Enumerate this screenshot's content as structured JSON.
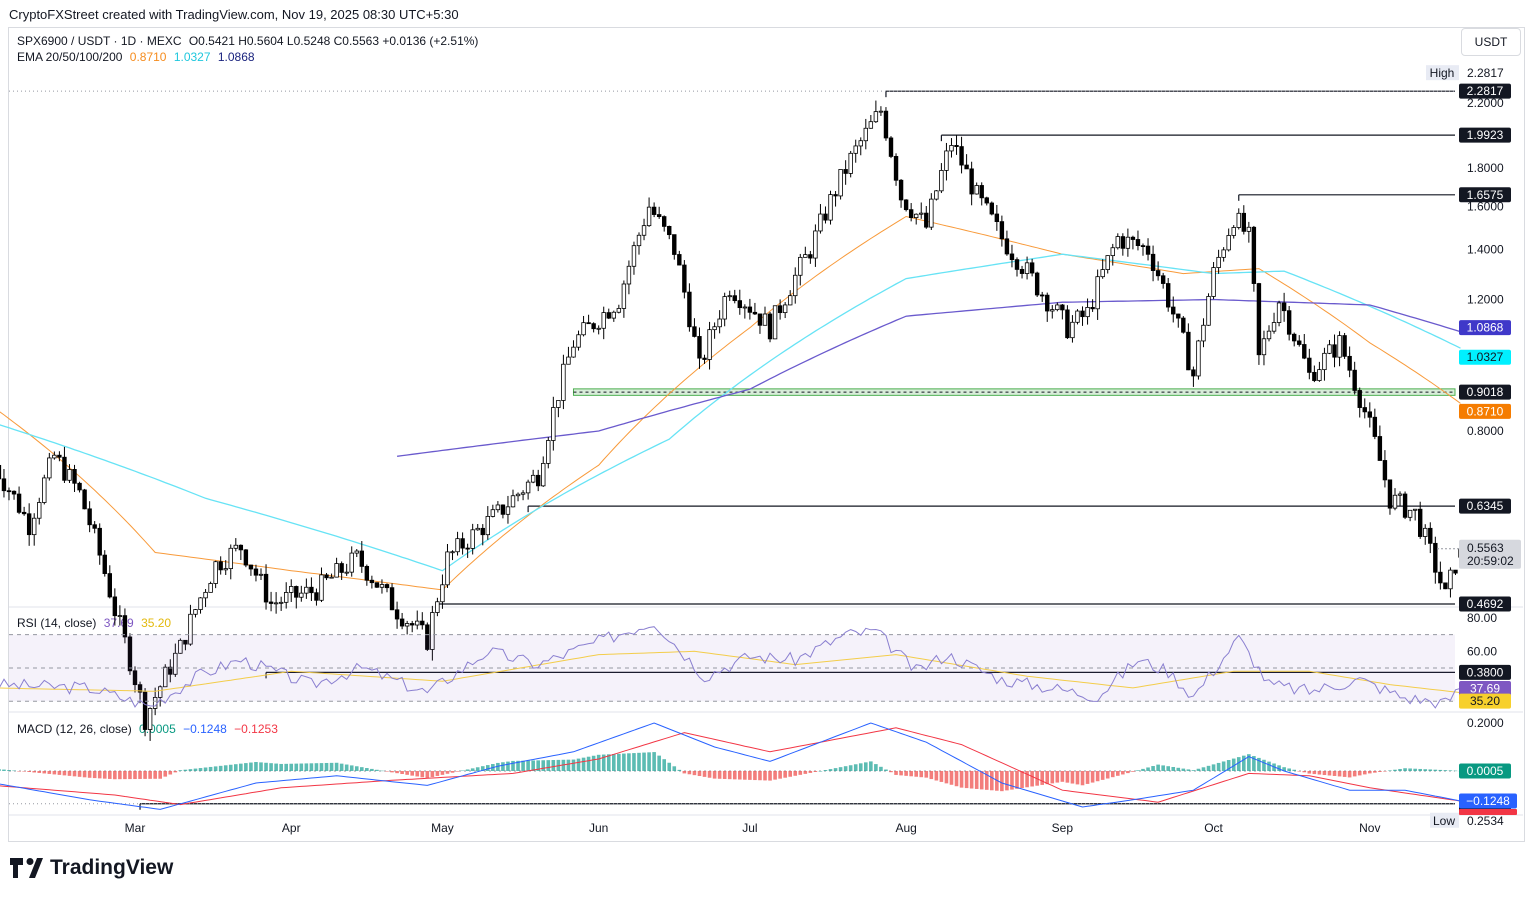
{
  "header": {
    "attribution": "CryptoFXStreet created with TradingView.com, Nov 19, 2025 08:30 UTC+5:30"
  },
  "legend": {
    "symbol": "SPX6900 / USDT · 1D · MEXC",
    "ohlc": "O0.5421 H0.5604 L0.5248 C0.5563 +0.0136 (+2.51%)",
    "ema_label": "EMA 20/50/100/200",
    "ema50": "0.8710",
    "ema100": "1.0327",
    "ema200": "1.0868",
    "rsi_label": "RSI (14, close)",
    "rsi_value": "37.69",
    "rsi_ma": "35.20",
    "macd_label": "MACD (12, 26, close)",
    "macd_hist": "0.0005",
    "macd_line": "−0.1248",
    "macd_signal": "−0.1253"
  },
  "currency": "USDT",
  "brand": "TradingView",
  "colors": {
    "up": "#ffffff",
    "down": "#000000",
    "ema50": "#f89a3a",
    "ema100": "#67e3f5",
    "ema200": "#6a5acd",
    "rsi": "#8a7fd0",
    "rsi_ma": "#f3cd4a",
    "macd": "#2962ff",
    "signal": "#f23645",
    "hist_up": "#26a69a",
    "hist_down": "#ef5350",
    "zone": "#4caf50"
  },
  "chart_data": [
    {
      "type": "candlestick",
      "title": "SPX6900 / USDT · 1D · MEXC",
      "x_ticks": [
        "Mar",
        "Apr",
        "May",
        "Jun",
        "Jul",
        "Aug",
        "Sep",
        "Oct",
        "Nov"
      ],
      "y_ticks": [
        "2.2000",
        "1.8000",
        "1.6000",
        "1.4000",
        "1.2000",
        "1.0000",
        "0.8000"
      ],
      "y_scale": "log",
      "ylim": [
        0.22,
        2.45
      ],
      "last": {
        "open": 0.5421,
        "high": 0.5604,
        "low": 0.5248,
        "close": 0.5563,
        "change": 0.0136,
        "change_pct": 2.51,
        "countdown": "20:59:02"
      },
      "high": {
        "label": "High",
        "value": "2.2817"
      },
      "low": {
        "label": "Low",
        "value": "0.2534"
      },
      "levels": [
        {
          "value": 2.2817,
          "label": "2.2817",
          "from": "2025-07-28"
        },
        {
          "value": 1.9923,
          "label": "1.9923",
          "from": "2025-08-08"
        },
        {
          "value": 1.6575,
          "label": "1.6575",
          "from": "2025-10-06"
        },
        {
          "value": 0.9018,
          "label": "0.9018",
          "from": "2025-05-27",
          "zone": [
            0.893,
            0.911
          ]
        },
        {
          "value": 0.6345,
          "label": "0.6345",
          "from": "2025-05-18"
        },
        {
          "value": 0.4692,
          "label": "0.4692",
          "from": "2025-04-30"
        },
        {
          "value": 0.38,
          "label": "0.3800",
          "from": "2025-03-27"
        },
        {
          "value": 0.2534,
          "label": "0.2534",
          "from": "2025-03-02"
        }
      ],
      "markers": [
        {
          "label": "1.0868",
          "value": 1.0868,
          "series": "EMA 200"
        },
        {
          "label": "1.0327",
          "value": 1.0327,
          "series": "EMA 100"
        },
        {
          "label": "0.8710",
          "value": 0.871,
          "series": "EMA 50"
        },
        {
          "label": "0.5563",
          "value": 0.5563,
          "series": "last"
        }
      ],
      "anchors": [
        [
          "2025-02-01",
          0.72
        ],
        [
          "2025-02-08",
          0.6
        ],
        [
          "2025-02-13",
          0.74
        ],
        [
          "2025-02-18",
          0.66
        ],
        [
          "2025-02-25",
          0.46
        ],
        [
          "2025-03-03",
          0.33
        ],
        [
          "2025-03-10",
          0.41
        ],
        [
          "2025-03-17",
          0.53
        ],
        [
          "2025-03-22",
          0.56
        ],
        [
          "2025-03-28",
          0.47
        ],
        [
          "2025-04-06",
          0.49
        ],
        [
          "2025-04-14",
          0.54
        ],
        [
          "2025-04-22",
          0.46
        ],
        [
          "2025-04-28",
          0.42
        ],
        [
          "2025-05-02",
          0.54
        ],
        [
          "2025-05-12",
          0.62
        ],
        [
          "2025-05-20",
          0.7
        ],
        [
          "2025-05-27",
          1.05
        ],
        [
          "2025-06-05",
          1.2
        ],
        [
          "2025-06-11",
          1.6
        ],
        [
          "2025-06-16",
          1.4
        ],
        [
          "2025-06-21",
          0.97
        ],
        [
          "2025-06-27",
          1.25
        ],
        [
          "2025-07-05",
          1.1
        ],
        [
          "2025-07-13",
          1.4
        ],
        [
          "2025-07-21",
          1.85
        ],
        [
          "2025-07-27",
          2.15
        ],
        [
          "2025-07-31",
          1.65
        ],
        [
          "2025-08-05",
          1.5
        ],
        [
          "2025-08-10",
          1.95
        ],
        [
          "2025-08-15",
          1.65
        ],
        [
          "2025-08-20",
          1.45
        ],
        [
          "2025-08-27",
          1.25
        ],
        [
          "2025-09-02",
          1.1
        ],
        [
          "2025-09-06",
          1.15
        ],
        [
          "2025-09-12",
          1.45
        ],
        [
          "2025-09-18",
          1.4
        ],
        [
          "2025-09-22",
          1.2
        ],
        [
          "2025-09-27",
          0.95
        ],
        [
          "2025-10-01",
          1.3
        ],
        [
          "2025-10-05",
          1.55
        ],
        [
          "2025-10-08",
          1.45
        ],
        [
          "2025-10-10",
          1.0
        ],
        [
          "2025-10-14",
          1.2
        ],
        [
          "2025-10-20",
          0.95
        ],
        [
          "2025-10-26",
          1.05
        ],
        [
          "2025-10-31",
          0.85
        ],
        [
          "2025-11-05",
          0.65
        ],
        [
          "2025-11-10",
          0.62
        ],
        [
          "2025-11-16",
          0.48
        ],
        [
          "2025-11-19",
          0.5563
        ]
      ],
      "ema50": [
        [
          "2025-02-01",
          0.86
        ],
        [
          "2025-03-05",
          0.55
        ],
        [
          "2025-04-01",
          0.52
        ],
        [
          "2025-05-01",
          0.49
        ],
        [
          "2025-06-01",
          0.72
        ],
        [
          "2025-07-01",
          1.1
        ],
        [
          "2025-08-01",
          1.55
        ],
        [
          "2025-09-01",
          1.38
        ],
        [
          "2025-09-25",
          1.3
        ],
        [
          "2025-10-10",
          1.32
        ],
        [
          "2025-11-01",
          1.05
        ],
        [
          "2025-11-19",
          0.871
        ]
      ],
      "ema100": [
        [
          "2025-02-01",
          0.82
        ],
        [
          "2025-03-15",
          0.65
        ],
        [
          "2025-05-01",
          0.52
        ],
        [
          "2025-06-15",
          0.78
        ],
        [
          "2025-08-01",
          1.28
        ],
        [
          "2025-09-01",
          1.38
        ],
        [
          "2025-10-01",
          1.3
        ],
        [
          "2025-10-15",
          1.31
        ],
        [
          "2025-11-19",
          1.0327
        ]
      ],
      "ema200": [
        [
          "2025-04-22",
          0.74
        ],
        [
          "2025-06-01",
          0.8
        ],
        [
          "2025-07-01",
          0.91
        ],
        [
          "2025-08-01",
          1.14
        ],
        [
          "2025-09-01",
          1.19
        ],
        [
          "2025-10-01",
          1.2
        ],
        [
          "2025-11-01",
          1.18
        ],
        [
          "2025-11-19",
          1.0868
        ]
      ]
    },
    {
      "type": "line",
      "title": "RSI (14, close)",
      "y_ticks": [
        "80.00",
        "60.00"
      ],
      "ylim": [
        17,
        83
      ],
      "bands": [
        30,
        50,
        70
      ],
      "series": [
        {
          "name": "RSI",
          "last": 37.69,
          "anchors": [
            [
              "2025-02-01",
              40
            ],
            [
              "2025-02-20",
              38
            ],
            [
              "2025-03-04",
              27
            ],
            [
              "2025-03-14",
              46
            ],
            [
              "2025-03-22",
              55
            ],
            [
              "2025-04-05",
              40
            ],
            [
              "2025-04-15",
              50
            ],
            [
              "2025-04-28",
              35
            ],
            [
              "2025-05-10",
              60
            ],
            [
              "2025-05-20",
              52
            ],
            [
              "2025-06-01",
              66
            ],
            [
              "2025-06-12",
              78
            ],
            [
              "2025-06-22",
              45
            ],
            [
              "2025-07-01",
              57
            ],
            [
              "2025-07-10",
              55
            ],
            [
              "2025-07-20",
              70
            ],
            [
              "2025-07-26",
              72
            ],
            [
              "2025-08-03",
              48
            ],
            [
              "2025-08-09",
              58
            ],
            [
              "2025-08-20",
              43
            ],
            [
              "2025-08-30",
              38
            ],
            [
              "2025-09-08",
              33
            ],
            [
              "2025-09-16",
              55
            ],
            [
              "2025-09-22",
              48
            ],
            [
              "2025-09-27",
              33
            ],
            [
              "2025-10-06",
              68
            ],
            [
              "2025-10-12",
              40
            ],
            [
              "2025-10-20",
              36
            ],
            [
              "2025-10-30",
              43
            ],
            [
              "2025-11-08",
              32
            ],
            [
              "2025-11-16",
              29
            ],
            [
              "2025-11-19",
              37.69
            ]
          ]
        },
        {
          "name": "RSI MA",
          "last": 35.2,
          "anchors": [
            [
              "2025-02-01",
              38
            ],
            [
              "2025-03-05",
              36
            ],
            [
              "2025-04-01",
              48
            ],
            [
              "2025-05-01",
              42
            ],
            [
              "2025-06-01",
              58
            ],
            [
              "2025-06-20",
              60
            ],
            [
              "2025-07-10",
              52
            ],
            [
              "2025-07-30",
              58
            ],
            [
              "2025-08-25",
              45
            ],
            [
              "2025-09-15",
              38
            ],
            [
              "2025-10-05",
              48
            ],
            [
              "2025-10-20",
              48
            ],
            [
              "2025-11-05",
              40
            ],
            [
              "2025-11-19",
              35.2
            ]
          ]
        }
      ]
    },
    {
      "type": "line",
      "title": "MACD (12, 26, close)",
      "y_ticks": [
        "0.2000"
      ],
      "ylim": [
        -0.28,
        0.26
      ],
      "series": [
        {
          "name": "MACD",
          "last": -0.1248,
          "anchors": [
            [
              "2025-02-01",
              -0.05
            ],
            [
              "2025-02-20",
              -0.12
            ],
            [
              "2025-03-06",
              -0.16
            ],
            [
              "2025-03-25",
              -0.05
            ],
            [
              "2025-04-10",
              -0.02
            ],
            [
              "2025-04-28",
              -0.06
            ],
            [
              "2025-05-12",
              0.02
            ],
            [
              "2025-05-27",
              0.08
            ],
            [
              "2025-06-12",
              0.2
            ],
            [
              "2025-06-24",
              0.1
            ],
            [
              "2025-07-05",
              0.04
            ],
            [
              "2025-07-25",
              0.2
            ],
            [
              "2025-08-05",
              0.12
            ],
            [
              "2025-08-20",
              -0.05
            ],
            [
              "2025-09-05",
              -0.15
            ],
            [
              "2025-09-15",
              -0.12
            ],
            [
              "2025-09-27",
              -0.08
            ],
            [
              "2025-10-08",
              0.06
            ],
            [
              "2025-10-15",
              0.0
            ],
            [
              "2025-10-28",
              -0.08
            ],
            [
              "2025-11-08",
              -0.08
            ],
            [
              "2025-11-19",
              -0.1248
            ]
          ]
        },
        {
          "name": "Signal",
          "last": -0.1253,
          "anchors": [
            [
              "2025-02-01",
              -0.06
            ],
            [
              "2025-02-25",
              -0.1
            ],
            [
              "2025-03-10",
              -0.14
            ],
            [
              "2025-03-30",
              -0.07
            ],
            [
              "2025-04-20",
              -0.04
            ],
            [
              "2025-05-15",
              -0.01
            ],
            [
              "2025-06-01",
              0.05
            ],
            [
              "2025-06-18",
              0.16
            ],
            [
              "2025-07-05",
              0.08
            ],
            [
              "2025-07-30",
              0.18
            ],
            [
              "2025-08-12",
              0.11
            ],
            [
              "2025-09-01",
              -0.08
            ],
            [
              "2025-09-20",
              -0.13
            ],
            [
              "2025-10-08",
              -0.01
            ],
            [
              "2025-10-20",
              -0.02
            ],
            [
              "2025-11-01",
              -0.07
            ],
            [
              "2025-11-19",
              -0.1253
            ]
          ]
        },
        {
          "name": "Histogram",
          "last": 0.0005
        }
      ]
    }
  ]
}
